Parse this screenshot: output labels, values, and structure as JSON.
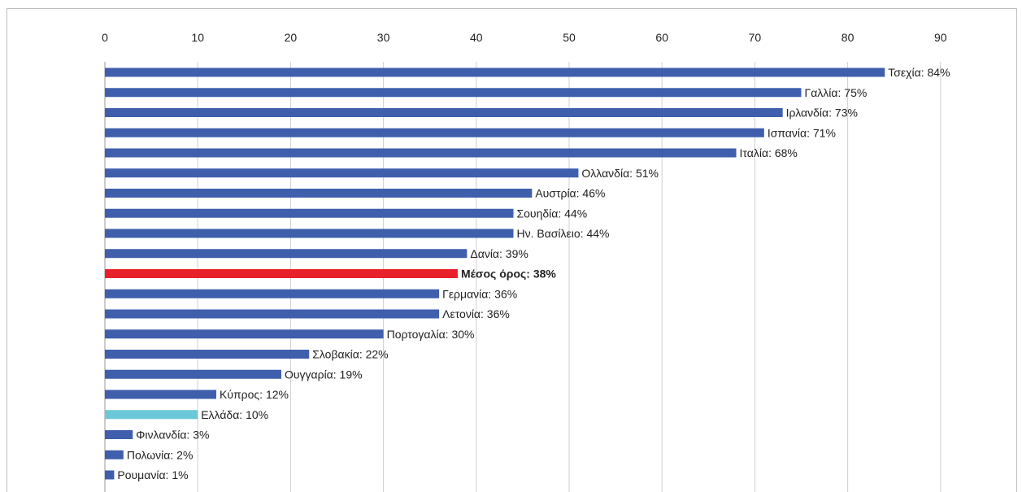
{
  "chart_data": {
    "type": "bar",
    "orientation": "horizontal",
    "x_axis_position": "top",
    "xlim": [
      0,
      90
    ],
    "xticks": [
      0,
      10,
      20,
      30,
      40,
      50,
      60,
      70,
      80,
      90
    ],
    "grid": true,
    "title": "",
    "xlabel": "",
    "ylabel": "",
    "colors": {
      "default": "#3f5fad",
      "average": "#e8202a",
      "highlight": "#6bc8d8",
      "grid": "#cfcfcf"
    },
    "bars": [
      {
        "label": "Τσεχία: 84%",
        "value": 84,
        "style": "default"
      },
      {
        "label": "Γαλλία: 75%",
        "value": 75,
        "style": "default"
      },
      {
        "label": "Ιρλανδία: 73%",
        "value": 73,
        "style": "default"
      },
      {
        "label": "Ισπανία: 71%",
        "value": 71,
        "style": "default"
      },
      {
        "label": "Ιταλία: 68%",
        "value": 68,
        "style": "default"
      },
      {
        "label": "Ολλανδία: 51%",
        "value": 51,
        "style": "default"
      },
      {
        "label": "Αυστρία: 46%",
        "value": 46,
        "style": "default"
      },
      {
        "label": "Σουηδία: 44%",
        "value": 44,
        "style": "default"
      },
      {
        "label": "Ην. Βασίλειο: 44%",
        "value": 44,
        "style": "default"
      },
      {
        "label": "Δανία: 39%",
        "value": 39,
        "style": "default"
      },
      {
        "label": "Μέσος όρος: 38%",
        "value": 38,
        "style": "average"
      },
      {
        "label": "Γερμανία: 36%",
        "value": 36,
        "style": "default"
      },
      {
        "label": "Λετονία: 36%",
        "value": 36,
        "style": "default"
      },
      {
        "label": "Πορτογαλία: 30%",
        "value": 30,
        "style": "default"
      },
      {
        "label": "Σλοβακία: 22%",
        "value": 22,
        "style": "default"
      },
      {
        "label": "Ουγγαρία: 19%",
        "value": 19,
        "style": "default"
      },
      {
        "label": "Κύπρος: 12%",
        "value": 12,
        "style": "default"
      },
      {
        "label": "Ελλάδα: 10%",
        "value": 10,
        "style": "highlight"
      },
      {
        "label": "Φινλανδία: 3%",
        "value": 3,
        "style": "default"
      },
      {
        "label": "Πολωνία: 2%",
        "value": 2,
        "style": "default"
      },
      {
        "label": "Ρουμανία: 1%",
        "value": 1,
        "style": "default"
      }
    ]
  }
}
